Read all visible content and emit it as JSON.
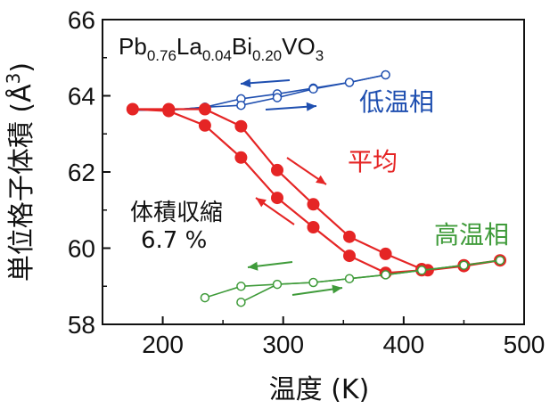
{
  "chart_data": {
    "type": "line",
    "x_axis": {
      "label": "温度 (K)",
      "min": 150,
      "max": 500,
      "ticks": [
        200,
        300,
        400,
        500
      ]
    },
    "y_axis": {
      "label": "単位格子体積 (Å³)",
      "min": 58,
      "max": 66,
      "ticks": [
        58,
        60,
        62,
        64,
        66
      ]
    },
    "grid": false,
    "compound": {
      "base": "Pb",
      "s1": "0.76",
      "el2": "La",
      "s2": "0.04",
      "el3": "Bi",
      "s3": "0.20",
      "el4": "VO",
      "s4": "3"
    },
    "series": [
      {
        "name": "低温相",
        "color": "#1f4fb0",
        "marker": "open-circle",
        "x": [
          175,
          205,
          235,
          265,
          295,
          325,
          355,
          385
        ],
        "upper": [
          63.62,
          63.62,
          63.7,
          63.92,
          64.05,
          64.2,
          64.35,
          64.55
        ],
        "lower": [
          63.62,
          63.62,
          63.7,
          63.75,
          63.95,
          64.18,
          64.35,
          64.55
        ]
      },
      {
        "name": "平均",
        "color": "#e52525",
        "marker": "filled-circle",
        "x": [
          175,
          205,
          235,
          265,
          295,
          325,
          355,
          385,
          415,
          420,
          450,
          480
        ],
        "upper": [
          63.65,
          63.65,
          63.65,
          63.2,
          62.05,
          61.15,
          60.3,
          59.85,
          59.45,
          59.42,
          59.55,
          59.68
        ],
        "lower": [
          63.65,
          63.6,
          63.22,
          62.38,
          61.32,
          60.55,
          59.8,
          59.35,
          59.42,
          59.42,
          59.53,
          59.68
        ]
      },
      {
        "name": "高温相",
        "color": "#3f9b3a",
        "marker": "open-circle",
        "x": [
          235,
          265,
          295,
          325,
          355,
          385,
          415,
          450,
          480
        ],
        "upper": [
          58.7,
          59.0,
          59.05,
          59.1,
          59.2,
          59.3,
          59.42,
          59.55,
          59.68
        ],
        "lower": [
          null,
          58.58,
          59.05,
          59.1,
          59.2,
          59.3,
          59.42,
          59.55,
          59.68
        ]
      }
    ],
    "annotations": {
      "low_phase": "低温相",
      "average": "平均",
      "high_phase": "高温相",
      "contraction_label": "体積収縮",
      "contraction_value": "6.7 %"
    }
  }
}
